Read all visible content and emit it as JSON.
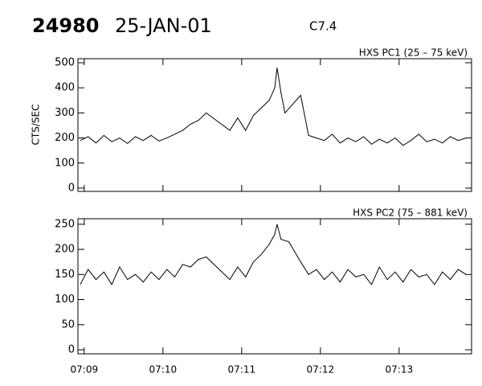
{
  "header": {
    "id": "24980",
    "date": "25-JAN-01",
    "class": "C7.4"
  },
  "chart_data": [
    {
      "type": "line",
      "title": "HXS PC1 (25 – 75 keV)",
      "ylabel": "CTS/SEC",
      "xlim": [
        8.92,
        13.92
      ],
      "xticks": [
        9,
        10,
        11,
        12,
        13
      ],
      "ylim": [
        -13,
        516
      ],
      "yticks": [
        0,
        100,
        200,
        300,
        400,
        500
      ],
      "x": [
        8.95,
        9.05,
        9.15,
        9.25,
        9.35,
        9.45,
        9.55,
        9.65,
        9.75,
        9.85,
        9.95,
        10.05,
        10.15,
        10.25,
        10.35,
        10.45,
        10.55,
        10.85,
        10.95,
        11.05,
        11.15,
        11.25,
        11.35,
        11.42,
        11.45,
        11.5,
        11.55,
        11.75,
        11.85,
        11.95,
        12.05,
        12.15,
        12.25,
        12.35,
        12.45,
        12.55,
        12.65,
        12.75,
        12.85,
        12.95,
        13.05,
        13.15,
        13.25,
        13.35,
        13.45,
        13.55,
        13.65,
        13.75,
        13.85
      ],
      "series": [
        {
          "name": "PC1",
          "color": "#000000",
          "values": [
            190,
            205,
            180,
            210,
            185,
            200,
            178,
            205,
            190,
            210,
            188,
            200,
            215,
            230,
            255,
            270,
            300,
            230,
            280,
            230,
            290,
            320,
            350,
            400,
            480,
            380,
            300,
            370,
            210,
            200,
            190,
            215,
            180,
            200,
            185,
            205,
            175,
            195,
            180,
            200,
            170,
            190,
            215,
            185,
            195,
            180,
            205,
            190,
            200
          ]
        }
      ]
    },
    {
      "type": "line",
      "title": "HXS PC2 (75 – 881 keV)",
      "xlim": [
        8.92,
        13.92
      ],
      "xticks": [
        {
          "value": 9,
          "label": "07:09"
        },
        {
          "value": 10,
          "label": "07:10"
        },
        {
          "value": 11,
          "label": "07:11"
        },
        {
          "value": 12,
          "label": "07:12"
        },
        {
          "value": 13,
          "label": "07:13"
        }
      ],
      "ylim": [
        -8,
        261
      ],
      "yticks": [
        0,
        50,
        100,
        150,
        200,
        250
      ],
      "x": [
        8.95,
        9.05,
        9.15,
        9.25,
        9.35,
        9.45,
        9.55,
        9.65,
        9.75,
        9.85,
        9.95,
        10.05,
        10.15,
        10.25,
        10.35,
        10.45,
        10.55,
        10.85,
        10.95,
        11.05,
        11.15,
        11.25,
        11.35,
        11.42,
        11.45,
        11.5,
        11.6,
        11.75,
        11.85,
        11.95,
        12.05,
        12.15,
        12.25,
        12.35,
        12.45,
        12.55,
        12.65,
        12.75,
        12.85,
        12.95,
        13.05,
        13.15,
        13.25,
        13.35,
        13.45,
        13.55,
        13.65,
        13.75,
        13.85
      ],
      "series": [
        {
          "name": "PC2",
          "color": "#000000",
          "values": [
            130,
            160,
            140,
            155,
            130,
            165,
            140,
            150,
            135,
            155,
            140,
            160,
            145,
            170,
            165,
            180,
            185,
            140,
            165,
            145,
            175,
            190,
            210,
            230,
            250,
            220,
            215,
            175,
            150,
            160,
            140,
            155,
            135,
            160,
            145,
            150,
            130,
            165,
            140,
            155,
            135,
            160,
            145,
            150,
            130,
            155,
            140,
            160,
            150
          ]
        }
      ]
    }
  ]
}
